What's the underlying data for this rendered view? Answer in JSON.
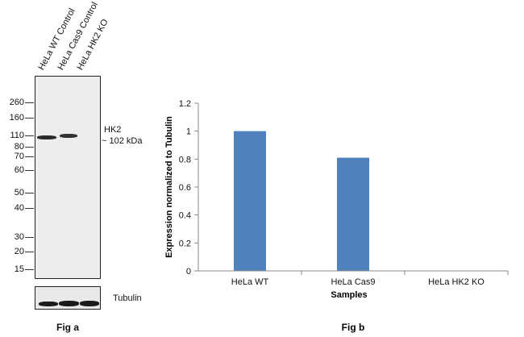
{
  "fig_a": {
    "lanes": [
      "HeLa WT Control",
      "HeLa Cas9 Control",
      "HeLa HK2 KO"
    ],
    "mw_markers": [
      "260",
      "160",
      "110",
      "80",
      "70",
      "60",
      "50",
      "40",
      "30",
      "20",
      "15"
    ],
    "band_label_1": "HK2",
    "band_label_2": "~ 102 kDa",
    "loading_label": "Tubulin",
    "caption": "Fig a"
  },
  "fig_b": {
    "caption": "Fig b"
  },
  "chart_data": {
    "type": "bar",
    "categories": [
      "HeLa WT",
      "HeLa Cas9",
      "HeLa HK2 KO"
    ],
    "values": [
      1.0,
      0.81,
      0.0
    ],
    "xlabel": "Samples",
    "ylabel": "Expression  normalized to Tubulin",
    "ylim": [
      0,
      1.2
    ],
    "yticks": [
      "0",
      "0.2",
      "0.4",
      "0.6",
      "0.8",
      "1",
      "1.2"
    ],
    "grid": false,
    "bar_color": "#4f81bd"
  }
}
